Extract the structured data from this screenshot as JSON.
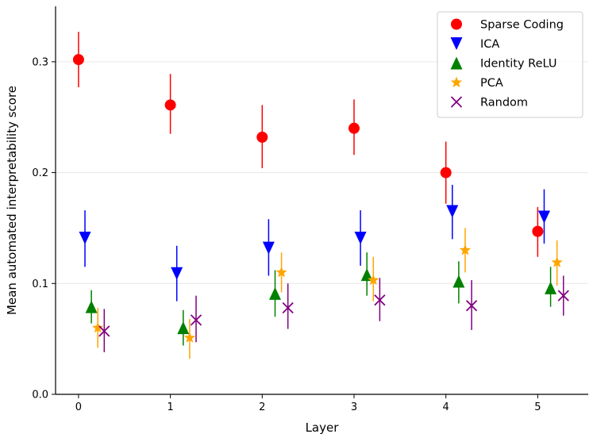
{
  "chart_data": {
    "type": "scatter",
    "xlabel": "Layer",
    "ylabel": "Mean automated interpretability score",
    "xlim": [
      -0.25,
      5.55
    ],
    "ylim": [
      0.0,
      0.35
    ],
    "x_ticks": [
      "0",
      "1",
      "2",
      "3",
      "4",
      "5"
    ],
    "y_ticks": [
      "0.0",
      "0.1",
      "0.2",
      "0.3"
    ],
    "grid": "horizontal",
    "legend_position": "top-right",
    "series": [
      {
        "name": "Sparse Coding",
        "marker": "circle",
        "color": "#ff0000",
        "offset": 0.0,
        "values": [
          0.302,
          0.261,
          0.232,
          0.24,
          0.2,
          0.147
        ],
        "err_low": [
          0.277,
          0.235,
          0.204,
          0.216,
          0.172,
          0.124
        ],
        "err_high": [
          0.327,
          0.289,
          0.261,
          0.266,
          0.228,
          0.169
        ]
      },
      {
        "name": "ICA",
        "marker": "triangle-down",
        "color": "#0000ff",
        "offset": 0.07,
        "values": [
          0.141,
          0.109,
          0.132,
          0.141,
          0.165,
          0.16
        ],
        "err_low": [
          0.115,
          0.084,
          0.107,
          0.116,
          0.14,
          0.136
        ],
        "err_high": [
          0.166,
          0.134,
          0.158,
          0.166,
          0.189,
          0.185
        ]
      },
      {
        "name": "Identity ReLU",
        "marker": "triangle-up",
        "color": "#008000",
        "offset": 0.14,
        "values": [
          0.079,
          0.06,
          0.091,
          0.108,
          0.102,
          0.096
        ],
        "err_low": [
          0.064,
          0.044,
          0.07,
          0.089,
          0.082,
          0.079
        ],
        "err_high": [
          0.094,
          0.076,
          0.112,
          0.128,
          0.12,
          0.115
        ]
      },
      {
        "name": "PCA",
        "marker": "star",
        "color": "#ffa500",
        "offset": 0.21,
        "values": [
          0.06,
          0.051,
          0.11,
          0.103,
          0.13,
          0.119
        ],
        "err_low": [
          0.042,
          0.032,
          0.092,
          0.084,
          0.11,
          0.098
        ],
        "err_high": [
          0.078,
          0.068,
          0.128,
          0.124,
          0.15,
          0.139
        ]
      },
      {
        "name": "Random",
        "marker": "x",
        "color": "#800080",
        "offset": 0.28,
        "values": [
          0.057,
          0.067,
          0.078,
          0.085,
          0.08,
          0.089
        ],
        "err_low": [
          0.038,
          0.047,
          0.059,
          0.066,
          0.058,
          0.071
        ],
        "err_high": [
          0.077,
          0.089,
          0.1,
          0.105,
          0.103,
          0.107
        ]
      }
    ]
  }
}
